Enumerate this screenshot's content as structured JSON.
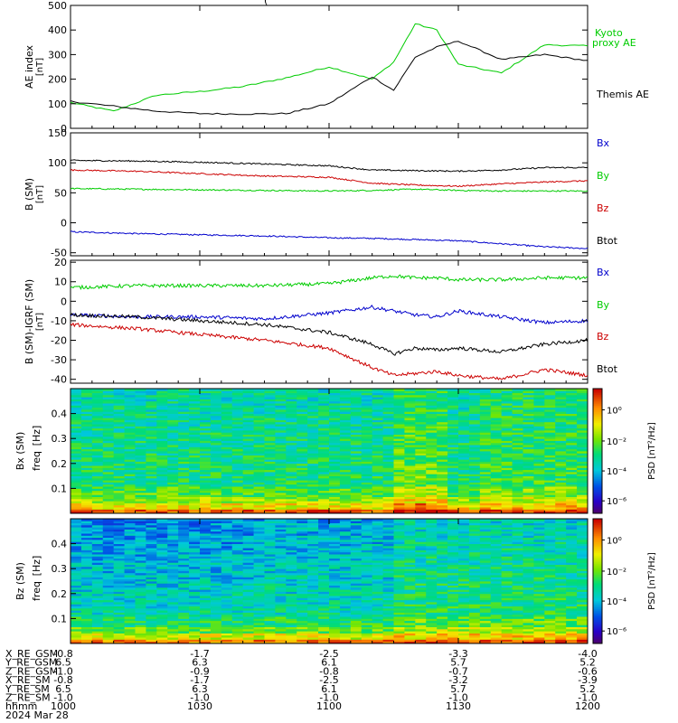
{
  "title_partial": "(",
  "panels": {
    "ae": {
      "ylabel": "AE index",
      "ylabel2": "[nT]",
      "ylim": [
        0,
        500
      ],
      "yticks": [
        "500",
        "400",
        "300",
        "200",
        "100",
        "0"
      ],
      "legend": [
        {
          "line1": "Kyoto",
          "line2": "proxy AE",
          "color": "#00cc00"
        },
        {
          "line1": "Themis AE",
          "line2": "",
          "color": "#000000"
        }
      ]
    },
    "bsm": {
      "ylabel": "B (SM)",
      "ylabel2": "[nT]",
      "ylim": [
        -55,
        150
      ],
      "yticks": [
        "150",
        "100",
        "50",
        "0",
        "-50"
      ],
      "legend": [
        {
          "label": "Bx",
          "color": "#0000cc"
        },
        {
          "label": "By",
          "color": "#00cc00"
        },
        {
          "label": "Bz",
          "color": "#cc0000"
        },
        {
          "label": "Btot",
          "color": "#000000"
        }
      ]
    },
    "bigrf": {
      "ylabel": "B (SM)-IGRF (SM)",
      "ylabel2": "[nT]",
      "ylim": [
        -42,
        21
      ],
      "yticks": [
        "20",
        "10",
        "0",
        "-10",
        "-20",
        "-30",
        "-40"
      ],
      "legend": [
        {
          "label": "Bx",
          "color": "#0000cc"
        },
        {
          "label": "By",
          "color": "#00cc00"
        },
        {
          "label": "Bz",
          "color": "#cc0000"
        },
        {
          "label": "Btot",
          "color": "#000000"
        }
      ]
    },
    "spec_bx": {
      "ylabel": "Bx (SM)",
      "ylabel2": "freq",
      "ylabel3": "[Hz]",
      "yticks": [
        "0.4",
        "0.3",
        "0.2",
        "0.1"
      ],
      "cbar_label": "PSD [nT²/Hz]",
      "cbar_ticks": [
        "10⁰",
        "10⁻²",
        "10⁻⁴",
        "10⁻⁶"
      ]
    },
    "spec_bz": {
      "ylabel": "Bz (SM)",
      "ylabel2": "freq",
      "ylabel3": "[Hz]",
      "yticks": [
        "0.4",
        "0.3",
        "0.2",
        "0.1"
      ],
      "cbar_label": "PSD [nT²/Hz]",
      "cbar_ticks": [
        "10⁰",
        "10⁻²",
        "10⁻⁴",
        "10⁻⁶"
      ]
    }
  },
  "orbit_table": {
    "rows": [
      {
        "label": "X_RE_GSM",
        "values": [
          "-0.8",
          "-1.7",
          "-2.5",
          "-3.3",
          "-4.0"
        ]
      },
      {
        "label": "Y_RE_GSM",
        "values": [
          "6.5",
          "6.3",
          "6.1",
          "5.7",
          "5.2"
        ]
      },
      {
        "label": "Z_RE_GSM",
        "values": [
          "-1.0",
          "-0.9",
          "-0.8",
          "-0.7",
          "-0.6"
        ]
      },
      {
        "label": "X_RE_SM",
        "values": [
          "-0.8",
          "-1.7",
          "-2.5",
          "-3.2",
          "-3.9"
        ]
      },
      {
        "label": "Y_RE_SM",
        "values": [
          "6.5",
          "6.3",
          "6.1",
          "5.7",
          "5.2"
        ]
      },
      {
        "label": "Z_RE_SM",
        "values": [
          "-1.0",
          "-1.0",
          "-1.0",
          "-1.0",
          "-1.0"
        ]
      },
      {
        "label": "hhmm",
        "values": [
          "1000",
          "1030",
          "1100",
          "1130",
          "1200"
        ]
      }
    ],
    "date": "2024 Mar 28"
  },
  "chart_data": [
    {
      "type": "line",
      "name": "ae",
      "x": [
        1000,
        1010,
        1020,
        1030,
        1040,
        1050,
        1100,
        1110,
        1115,
        1120,
        1125,
        1130,
        1140,
        1150,
        1200
      ],
      "x_unit": "hhmm",
      "series": [
        {
          "name": "Kyoto proxy AE",
          "values": [
            105,
            70,
            135,
            150,
            170,
            205,
            250,
            200,
            270,
            425,
            400,
            260,
            225,
            340,
            335
          ]
        },
        {
          "name": "Themis AE",
          "values": [
            110,
            90,
            70,
            60,
            58,
            60,
            100,
            210,
            155,
            290,
            330,
            355,
            280,
            300,
            275
          ]
        }
      ],
      "ylim": [
        0,
        500
      ]
    },
    {
      "type": "line",
      "name": "b_sm",
      "x": [
        1000,
        1015,
        1030,
        1045,
        1100,
        1110,
        1120,
        1130,
        1140,
        1150,
        1200
      ],
      "x_unit": "hhmm",
      "series": [
        {
          "name": "Bx",
          "values": [
            -15,
            -18,
            -20,
            -22,
            -25,
            -26,
            -28,
            -30,
            -35,
            -40,
            -43
          ]
        },
        {
          "name": "By",
          "values": [
            57,
            56,
            55,
            54,
            53,
            54,
            56,
            54,
            53,
            53,
            53
          ]
        },
        {
          "name": "Bz",
          "values": [
            88,
            86,
            82,
            78,
            76,
            66,
            63,
            61,
            65,
            68,
            70
          ]
        },
        {
          "name": "Btot",
          "values": [
            104,
            103,
            101,
            98,
            95,
            88,
            87,
            86,
            88,
            92,
            92
          ]
        }
      ],
      "ylim": [
        -55,
        150
      ]
    },
    {
      "type": "line",
      "name": "b_sm_minus_igrf",
      "x": [
        1000,
        1015,
        1030,
        1045,
        1100,
        1110,
        1115,
        1120,
        1125,
        1130,
        1140,
        1150,
        1200
      ],
      "x_unit": "hhmm",
      "series": [
        {
          "name": "Bx",
          "values": [
            -7,
            -8,
            -8,
            -9,
            -6,
            -3,
            -5,
            -7,
            -8,
            -5,
            -8,
            -11,
            -10
          ]
        },
        {
          "name": "By",
          "values": [
            7,
            8,
            8,
            8,
            9,
            12,
            13,
            12,
            12,
            11,
            11,
            12,
            12
          ]
        },
        {
          "name": "Bz",
          "values": [
            -12,
            -14,
            -17,
            -20,
            -24,
            -34,
            -38,
            -37,
            -36,
            -38,
            -40,
            -35,
            -38
          ]
        },
        {
          "name": "Btot",
          "values": [
            -7,
            -8,
            -10,
            -12,
            -16,
            -22,
            -27,
            -24,
            -25,
            -24,
            -26,
            -22,
            -20
          ]
        }
      ],
      "ylim": [
        -42,
        21
      ]
    },
    {
      "type": "heatmap",
      "name": "bx_sm_spectrogram",
      "x_range": [
        1000,
        1200
      ],
      "y_range_hz": [
        0,
        0.5
      ],
      "cbar": "PSD [nT²/Hz]",
      "cbar_log_range": [
        -7,
        1.5
      ],
      "description": "high PSD at lowest frequencies, mostly 10^-3 to 10^-2 across band, enhanced near 1115-1125"
    },
    {
      "type": "heatmap",
      "name": "bz_sm_spectrogram",
      "x_range": [
        1000,
        1200
      ],
      "y_range_hz": [
        0,
        0.5
      ],
      "cbar": "PSD [nT²/Hz]",
      "cbar_log_range": [
        -7,
        1.5
      ],
      "description": "high PSD at lowest frequencies, lower (cyan) at high frequencies early, enhanced after 1115"
    }
  ]
}
